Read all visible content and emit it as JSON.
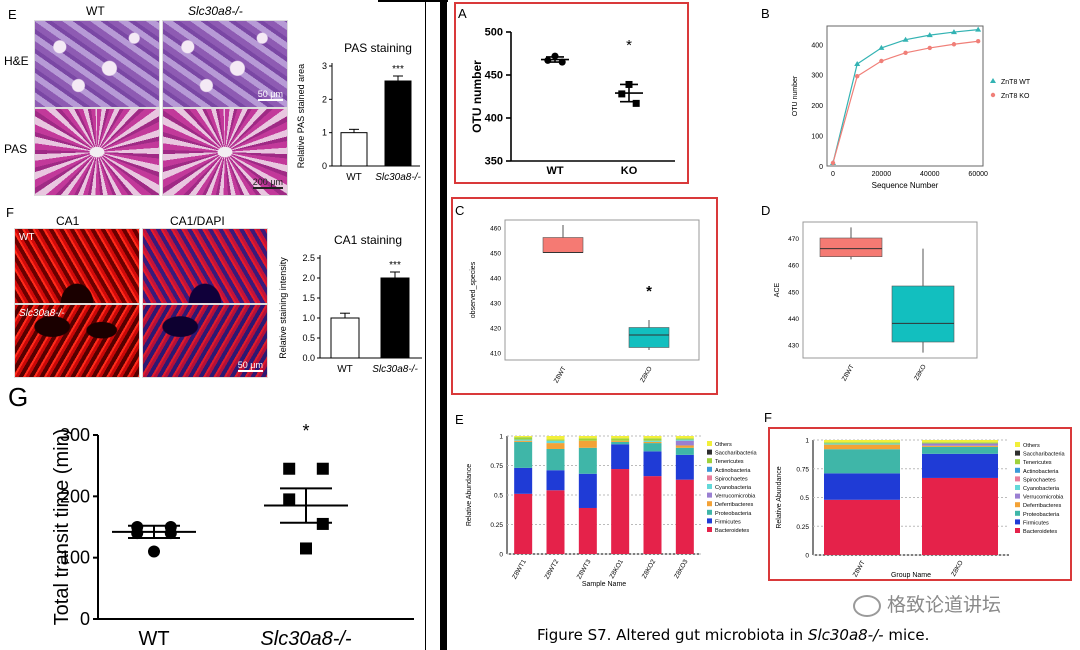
{
  "figure_caption": {
    "prefix": "Figure S7. Altered gut microbiota in ",
    "gene": "Slc30a8-/-",
    "suffix": " mice."
  },
  "watermark": "格致论道讲坛",
  "colors": {
    "panel_border": "#d9393a",
    "black_bar": "#000000"
  },
  "panel_E_left": {
    "letter": "E",
    "col_wt": "WT",
    "col_ko": "Slc30a8-/-",
    "row_he": "H&E",
    "row_pas": "PAS",
    "scale_he": "50 μm",
    "scale_pas": "200 μm"
  },
  "panel_F_left": {
    "letter": "F",
    "col_ca1": "CA1",
    "col_dapi": "CA1/DAPI",
    "row_wt": "WT",
    "row_ko": "Slc30a8-/-",
    "scale": "50 μm"
  },
  "panel_G": {
    "letter": "G"
  },
  "right_letters": {
    "A": "A",
    "B": "B",
    "C": "C",
    "D": "D",
    "E": "E",
    "F": "F"
  },
  "chart_data": [
    {
      "id": "pas",
      "type": "bar",
      "title": "PAS staining",
      "ylabel": "Relative PAS stained area",
      "categories": [
        "WT",
        "Slc30a8-/-"
      ],
      "values": [
        1.0,
        2.55
      ],
      "errors": [
        0.1,
        0.15
      ],
      "ylim": [
        0,
        3
      ],
      "yticks": [
        0,
        1,
        2,
        3
      ],
      "significance": "***"
    },
    {
      "id": "ca1",
      "type": "bar",
      "title": "CA1 staining",
      "ylabel": "Relative staining intensity",
      "categories": [
        "WT",
        "Slc30a8-/-"
      ],
      "values": [
        1.0,
        2.0
      ],
      "errors": [
        0.12,
        0.15
      ],
      "ylim": [
        0,
        2.5
      ],
      "yticks": [
        0.0,
        0.5,
        1.0,
        1.5,
        2.0,
        2.5
      ],
      "significance": "***"
    },
    {
      "id": "transit",
      "type": "scatter",
      "ylabel": "Total transit time (min)",
      "categories": [
        "WT",
        "Slc30a8-/-"
      ],
      "points": [
        [
          140,
          140,
          150,
          150,
          110
        ],
        [
          245,
          245,
          195,
          155,
          115
        ]
      ],
      "means": [
        142,
        185
      ],
      "sem": [
        10,
        28
      ],
      "ylim": [
        0,
        300
      ],
      "yticks": [
        0,
        100,
        200,
        300
      ],
      "significance": "*"
    },
    {
      "id": "otu",
      "type": "scatter",
      "ylabel": "OTU number",
      "categories": [
        "WT",
        "KO"
      ],
      "points": [
        [
          472,
          467,
          465
        ],
        [
          439,
          428,
          417
        ]
      ],
      "means": [
        468,
        429
      ],
      "sem": [
        3,
        10
      ],
      "ylim": [
        350,
        500
      ],
      "yticks": [
        350,
        400,
        450,
        500
      ],
      "significance": "*"
    },
    {
      "id": "rarefaction",
      "type": "line",
      "xlabel": "Sequence Number",
      "ylabel": "OTU number",
      "x": [
        0,
        10000,
        20000,
        30000,
        40000,
        50000,
        60000
      ],
      "xticks": [
        0,
        20000,
        40000,
        60000
      ],
      "yticks": [
        0,
        100,
        200,
        300,
        400
      ],
      "xlim": [
        0,
        62000
      ],
      "ylim": [
        0,
        460
      ],
      "series": [
        {
          "name": "ZnT8 WT",
          "color": "#33b3b3",
          "values": [
            10,
            335,
            388,
            415,
            430,
            440,
            448
          ]
        },
        {
          "name": "ZnT8 KO",
          "color": "#f07f78",
          "values": [
            10,
            295,
            345,
            372,
            388,
            400,
            410
          ]
        }
      ]
    },
    {
      "id": "observed_species",
      "type": "box",
      "ylabel": "observed_species",
      "categories": [
        "Z8WT",
        "Z8KO"
      ],
      "colors": [
        "#f57a73",
        "#12bfbf"
      ],
      "boxes": [
        {
          "min": 450,
          "q1": 450,
          "median": 450,
          "q3": 456,
          "max": 461
        },
        {
          "min": 411,
          "q1": 412,
          "median": 417,
          "q3": 420,
          "max": 423
        }
      ],
      "ylim": [
        407,
        463
      ],
      "yticks": [
        410,
        420,
        430,
        440,
        450,
        460
      ],
      "significance": "*"
    },
    {
      "id": "ace",
      "type": "box",
      "ylabel": "ACE",
      "categories": [
        "Z8WT",
        "Z8KO"
      ],
      "colors": [
        "#f57a73",
        "#12bfbf"
      ],
      "boxes": [
        {
          "min": 462,
          "q1": 463,
          "median": 466,
          "q3": 470,
          "max": 474
        },
        {
          "min": 427,
          "q1": 431,
          "median": 438,
          "q3": 452,
          "max": 466
        }
      ],
      "ylim": [
        425,
        476
      ],
      "yticks": [
        430,
        440,
        450,
        460,
        470
      ]
    },
    {
      "id": "abundance_samples",
      "type": "bar",
      "stacked": true,
      "xlabel": "Sample Name",
      "ylabel": "Relative Abundance",
      "categories": [
        "Z8WT1",
        "Z8WT2",
        "Z8WT3",
        "Z8KO1",
        "Z8KO2",
        "Z8KO3"
      ],
      "ylim": [
        0,
        1
      ],
      "yticks": [
        0,
        0.25,
        0.5,
        0.75,
        1
      ],
      "legend": [
        "Others",
        "Saccharibacteria",
        "Tenericutes",
        "Actinobacteria",
        "Spirochaetes",
        "Cyanobacteria",
        "Verrucomicrobia",
        "Deferribacteres",
        "Proteobacteria",
        "Firmicutes",
        "Bacteroidetes"
      ],
      "legend_colors": [
        "#f2ef3a",
        "#2e2e2e",
        "#9fd23b",
        "#3a9ad9",
        "#e87c9b",
        "#64d9d9",
        "#9a7fd2",
        "#f3a236",
        "#3fb6a8",
        "#1f3bd6",
        "#e5224a"
      ],
      "series": [
        {
          "name": "Bacteroidetes",
          "values": [
            0.51,
            0.54,
            0.39,
            0.72,
            0.66,
            0.63
          ]
        },
        {
          "name": "Firmicutes",
          "values": [
            0.22,
            0.17,
            0.29,
            0.21,
            0.21,
            0.21
          ]
        },
        {
          "name": "Proteobacteria",
          "values": [
            0.22,
            0.18,
            0.22,
            0.02,
            0.07,
            0.06
          ]
        },
        {
          "name": "Deferribacteres",
          "values": [
            0.01,
            0.05,
            0.06,
            0.01,
            0.01,
            0.02
          ]
        },
        {
          "name": "Verrucomicrobia",
          "values": [
            0.0,
            0.0,
            0.0,
            0.0,
            0.0,
            0.04
          ]
        },
        {
          "name": "Cyanobacteria",
          "values": [
            0.01,
            0.02,
            0.0,
            0.0,
            0.01,
            0.01
          ]
        },
        {
          "name": "Tenericutes",
          "values": [
            0.02,
            0.01,
            0.02,
            0.02,
            0.02,
            0.01
          ]
        },
        {
          "name": "Others",
          "values": [
            0.01,
            0.03,
            0.02,
            0.02,
            0.02,
            0.02
          ]
        }
      ]
    },
    {
      "id": "abundance_groups",
      "type": "bar",
      "stacked": true,
      "xlabel": "Group Name",
      "ylabel": "Relative Abundance",
      "categories": [
        "Z8WT",
        "Z8KO"
      ],
      "ylim": [
        0,
        1
      ],
      "yticks": [
        0,
        0.25,
        0.5,
        0.75,
        1
      ],
      "legend": [
        "Others",
        "Saccharibacteria",
        "Tenericutes",
        "Actinobacteria",
        "Spirochaetes",
        "Cyanobacteria",
        "Verrucomicrobia",
        "Deferribacteres",
        "Proteobacteria",
        "Firmicutes",
        "Bacteroidetes"
      ],
      "legend_colors": [
        "#f2ef3a",
        "#2e2e2e",
        "#9fd23b",
        "#3a9ad9",
        "#e87c9b",
        "#64d9d9",
        "#9a7fd2",
        "#f3a236",
        "#3fb6a8",
        "#1f3bd6",
        "#e5224a"
      ],
      "series": [
        {
          "name": "Bacteroidetes",
          "values": [
            0.48,
            0.67
          ]
        },
        {
          "name": "Firmicutes",
          "values": [
            0.23,
            0.21
          ]
        },
        {
          "name": "Proteobacteria",
          "values": [
            0.21,
            0.06
          ]
        },
        {
          "name": "Deferribacteres",
          "values": [
            0.04,
            0.01
          ]
        },
        {
          "name": "Verrucomicrobia",
          "values": [
            0.0,
            0.02
          ]
        },
        {
          "name": "Cyanobacteria",
          "values": [
            0.01,
            0.0
          ]
        },
        {
          "name": "Tenericutes",
          "values": [
            0.01,
            0.01
          ]
        },
        {
          "name": "Others",
          "values": [
            0.02,
            0.02
          ]
        }
      ]
    }
  ]
}
